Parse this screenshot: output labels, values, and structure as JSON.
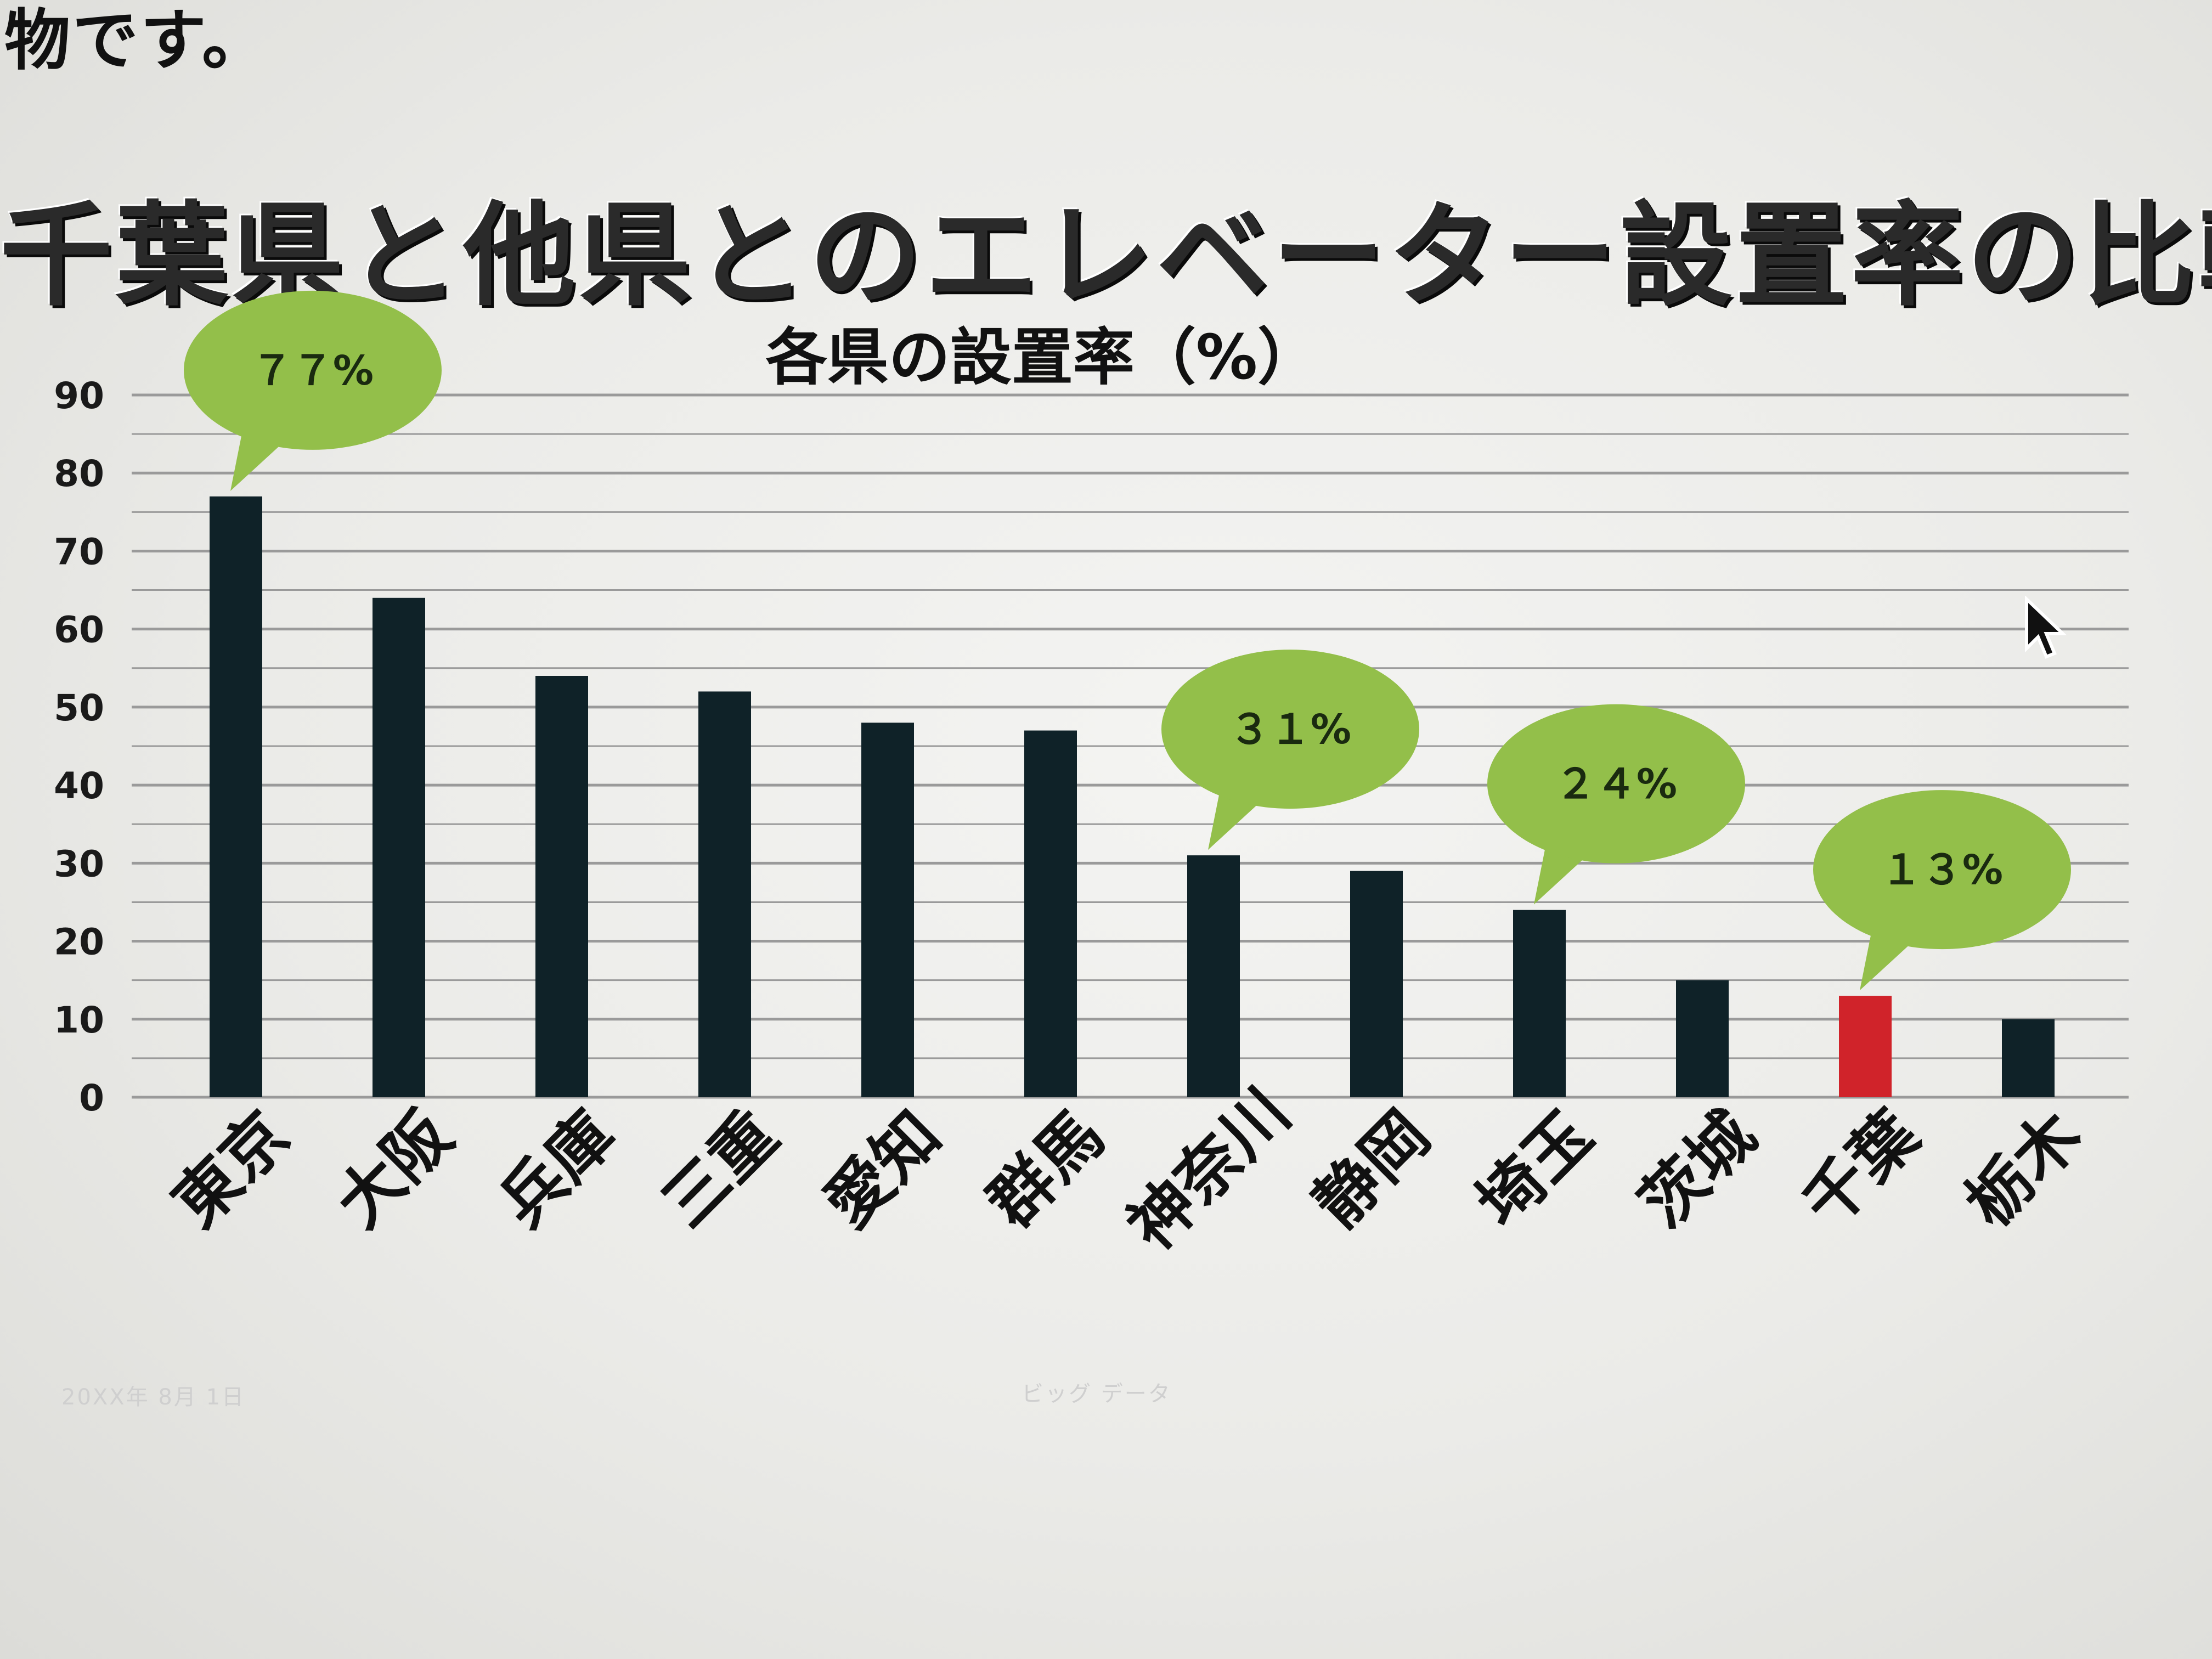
{
  "corner_text": "物です。",
  "footer": {
    "date": "20XX年 8月 1日",
    "center": "ビッグ データ"
  },
  "colors": {
    "bar": "#0f2228",
    "highlight_bar": "#d0232a",
    "bubble": "#93bf4a",
    "gridline": "#9a9a9a",
    "text": "#111111"
  },
  "chart_data": {
    "type": "bar",
    "title": "千葉県と他県とのエレベーター設置率の比較",
    "subtitle": "各県の設置率（%）",
    "categories": [
      "東京",
      "大阪",
      "兵庫",
      "三重",
      "愛知",
      "群馬",
      "神奈川",
      "静岡",
      "埼玉",
      "茨城",
      "千葉",
      "栃木"
    ],
    "values": [
      77,
      64,
      54,
      52,
      48,
      47,
      31,
      29,
      24,
      15,
      13,
      10
    ],
    "highlight_index": 10,
    "ylim": [
      0,
      90
    ],
    "yticks": [
      "0",
      "10",
      "20",
      "30",
      "40",
      "50",
      "60",
      "70",
      "80",
      "90"
    ],
    "grid": true,
    "annotations": [
      {
        "category": "東京",
        "text": "７７%"
      },
      {
        "category": "神奈川",
        "text": "３１%"
      },
      {
        "category": "埼玉",
        "text": "２４%"
      },
      {
        "category": "千葉",
        "text": "１３%"
      }
    ]
  }
}
